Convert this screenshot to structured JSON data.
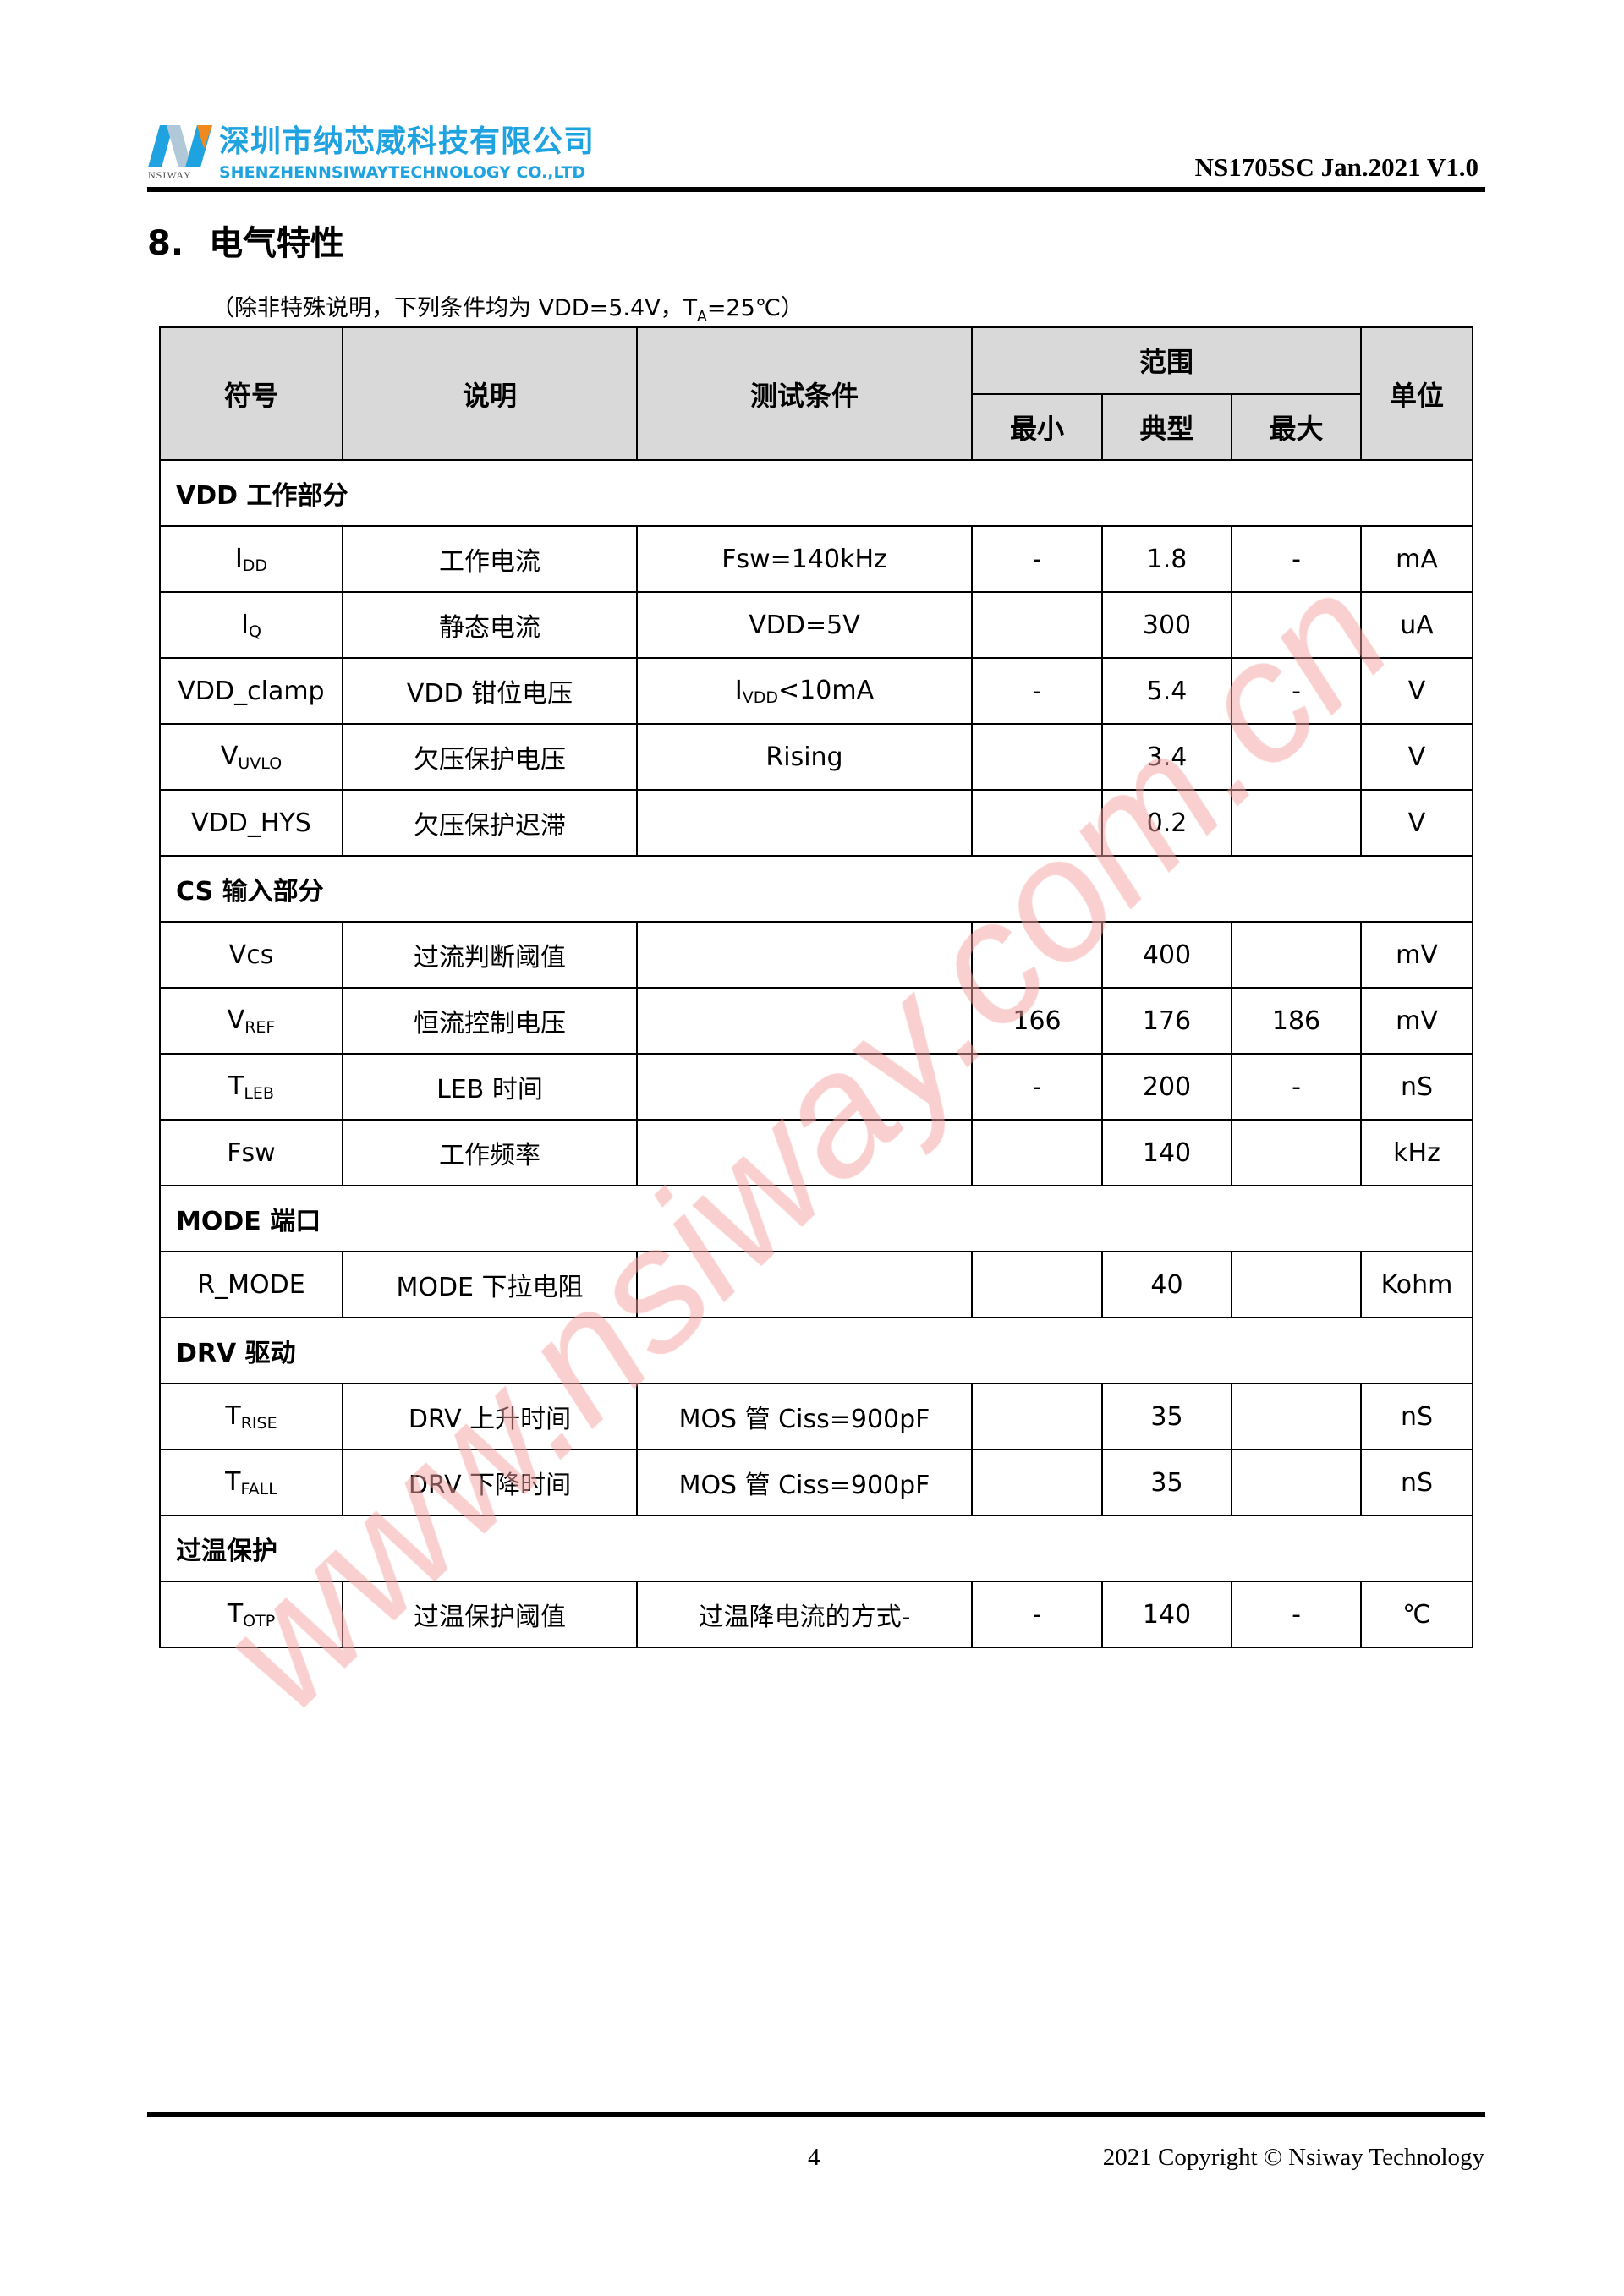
{
  "header": {
    "company_cn": "深圳市纳芯威科技有限公司",
    "company_en": "SHENZHENNSIWAYTECHNOLOGY CO.,LTD",
    "logo_small": "NSIWAY",
    "doc_id": "NS1705SC Jan.2021 V1.0",
    "brand_color": "#1fa3e0"
  },
  "section": {
    "number": "8.",
    "title": "电气特性"
  },
  "note": {
    "prefix": "（除非特殊说明，下列条件均为 VDD=5.4V，T",
    "sub": "A",
    "suffix": "=25℃）"
  },
  "table": {
    "headers": {
      "symbol": "符号",
      "desc": "说明",
      "cond": "测试条件",
      "range": "范围",
      "min": "最小",
      "typ": "典型",
      "max": "最大",
      "unit": "单位"
    },
    "rows": [
      {
        "section": "VDD  工作部分"
      },
      {
        "sym": "I",
        "sub": "DD",
        "desc": "工作电流",
        "cond": "Fsw=140kHz",
        "min": "-",
        "typ": "1.8",
        "max": "-",
        "unit": "mA"
      },
      {
        "sym": "I",
        "sub": "Q",
        "desc": "静态电流",
        "cond": "VDD=5V",
        "min": "",
        "typ": "300",
        "max": "",
        "unit": "uA"
      },
      {
        "sym": "VDD_clamp",
        "sub": "",
        "desc": "VDD  钳位电压",
        "cond_pre": "I",
        "cond_sub": "VDD",
        "cond": "<10mA",
        "min": "-",
        "typ": "5.4",
        "max": "-",
        "unit": "V"
      },
      {
        "sym": "V",
        "sub": "UVLO",
        "desc": "欠压保护电压",
        "cond": "Rising",
        "min": "",
        "typ": "3.4",
        "max": "",
        "unit": "V"
      },
      {
        "sym": "VDD_HYS",
        "sub": "",
        "desc": "欠压保护迟滞",
        "cond": "",
        "min": "",
        "typ": "0.2",
        "max": "",
        "unit": "V"
      },
      {
        "section": "CS  输入部分"
      },
      {
        "sym": "Vcs",
        "sub": "",
        "desc": "过流判断阈值",
        "cond": "",
        "min": "",
        "typ": "400",
        "max": "",
        "unit": "mV"
      },
      {
        "sym": "V",
        "sub": "REF",
        "desc": "恒流控制电压",
        "cond": "",
        "min": "166",
        "typ": "176",
        "max": "186",
        "unit": "mV"
      },
      {
        "sym": "T",
        "sub": "LEB",
        "desc": "LEB  时间",
        "cond": "",
        "min": "-",
        "typ": "200",
        "max": "-",
        "unit": "nS"
      },
      {
        "sym": "Fsw",
        "sub": "",
        "desc": "工作频率",
        "cond": "",
        "min": "",
        "typ": "140",
        "max": "",
        "unit": "kHz"
      },
      {
        "section": "MODE 端口"
      },
      {
        "sym": "R_MODE",
        "sub": "",
        "desc": "MODE 下拉电阻",
        "cond": "",
        "min": "",
        "typ": "40",
        "max": "",
        "unit": "Kohm"
      },
      {
        "section": "DRV 驱动"
      },
      {
        "sym": "T",
        "sub": "RISE",
        "desc": "DRV 上升时间",
        "cond": "MOS 管 Ciss=900pF",
        "min": "",
        "typ": "35",
        "max": "",
        "unit": "nS"
      },
      {
        "sym": "T",
        "sub": "FALL",
        "desc": "DRV 下降时间",
        "cond": "MOS 管 Ciss=900pF",
        "min": "",
        "typ": "35",
        "max": "",
        "unit": "nS"
      },
      {
        "section": "过温保护"
      },
      {
        "sym": "T",
        "sub": "OTP",
        "desc": "过温保护阈值",
        "cond": "过温降电流的方式-",
        "min": "-",
        "typ": "140",
        "max": "-",
        "unit": "℃"
      }
    ]
  },
  "watermark": {
    "text": "www.nsiway.com.cn",
    "color": "#f4a0a0"
  },
  "footer": {
    "page": "4",
    "copyright": "2021 Copyright © Nsiway Technology"
  }
}
